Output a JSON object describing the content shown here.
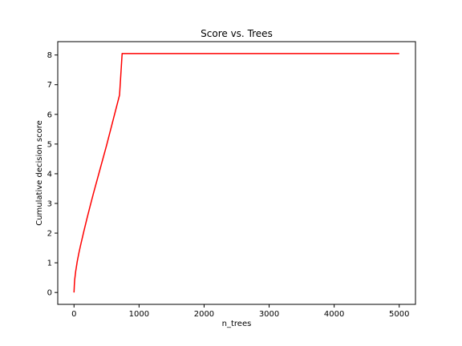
{
  "chart_data": {
    "type": "line",
    "title": "Score vs. Trees",
    "xlabel": "n_trees",
    "ylabel": "Cumulative decision score",
    "xlim": [
      -250,
      5250
    ],
    "ylim": [
      -0.4,
      8.45
    ],
    "xticks": [
      0,
      1000,
      2000,
      3000,
      4000,
      5000
    ],
    "yticks": [
      0,
      1,
      2,
      3,
      4,
      5,
      6,
      7,
      8
    ],
    "grid": false,
    "series": [
      {
        "color": "#ff0000",
        "x": [
          0,
          5,
          10,
          25,
          50,
          75,
          100,
          150,
          200,
          250,
          300,
          400,
          500,
          600,
          700,
          740,
          1000,
          2000,
          3000,
          4000,
          5000
        ],
        "y": [
          0,
          0.25,
          0.42,
          0.7,
          1.05,
          1.33,
          1.58,
          2.05,
          2.5,
          2.93,
          3.35,
          4.15,
          4.95,
          5.8,
          6.65,
          8.05,
          8.05,
          8.05,
          8.05,
          8.05,
          8.05
        ]
      }
    ]
  }
}
